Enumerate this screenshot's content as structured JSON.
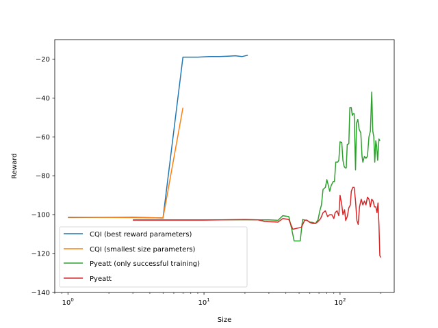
{
  "chart_data": {
    "type": "line",
    "title": "",
    "xlabel": "Size",
    "ylabel": "Reward",
    "xscale": "log",
    "xlim": [
      0.8,
      250
    ],
    "ylim": [
      -140,
      -10
    ],
    "xticks": [
      {
        "value": 1,
        "base": "10",
        "exp": "0"
      },
      {
        "value": 10,
        "base": "10",
        "exp": "1"
      },
      {
        "value": 100,
        "base": "10",
        "exp": "2"
      }
    ],
    "yticks": [
      -20,
      -40,
      -60,
      -80,
      -100,
      -120,
      -140
    ],
    "ytick_labels": [
      "−20",
      "−40",
      "−60",
      "−80",
      "−100",
      "−120",
      "−140"
    ],
    "grid": false,
    "legend_position": "lower left",
    "series": [
      {
        "name": "CQI (best reward parameters)",
        "color": "#1f77b4",
        "points": [
          [
            1,
            -101.5
          ],
          [
            3,
            -101.3
          ],
          [
            5,
            -101.7
          ],
          [
            7,
            -19
          ],
          [
            9,
            -19
          ],
          [
            11,
            -18.7
          ],
          [
            13,
            -18.7
          ],
          [
            15,
            -18.5
          ],
          [
            17,
            -18.3
          ],
          [
            19,
            -18.7
          ],
          [
            21,
            -18
          ]
        ]
      },
      {
        "name": "CQI (smallest size parameters)",
        "color": "#ff7f0e",
        "points": [
          [
            1,
            -101.3
          ],
          [
            3,
            -101.5
          ],
          [
            5,
            -101.7
          ],
          [
            7,
            -45
          ]
        ]
      },
      {
        "name": "Pyeatt (only successful training)",
        "color": "#2ca02c",
        "points": [
          [
            3,
            -102.7
          ],
          [
            5,
            -102.7
          ],
          [
            10,
            -102.7
          ],
          [
            20,
            -102.6
          ],
          [
            30,
            -102.7
          ],
          [
            35,
            -102.9
          ],
          [
            38,
            -100.5
          ],
          [
            42,
            -101
          ],
          [
            44,
            -107
          ],
          [
            46,
            -113.5
          ],
          [
            51,
            -113.5
          ],
          [
            53,
            -102.5
          ],
          [
            57,
            -103
          ],
          [
            60,
            -103.8
          ],
          [
            63,
            -104
          ],
          [
            66,
            -104.5
          ],
          [
            69,
            -102.5
          ],
          [
            71,
            -98
          ],
          [
            73,
            -95
          ],
          [
            75,
            -87
          ],
          [
            78,
            -86
          ],
          [
            80,
            -82
          ],
          [
            82,
            -85
          ],
          [
            84,
            -88
          ],
          [
            86,
            -85
          ],
          [
            89,
            -83
          ],
          [
            91,
            -83
          ],
          [
            93,
            -73
          ],
          [
            96,
            -73
          ],
          [
            98,
            -72
          ],
          [
            100,
            -62.5
          ],
          [
            103,
            -63
          ],
          [
            105,
            -72
          ],
          [
            107,
            -75
          ],
          [
            109,
            -76
          ],
          [
            111,
            -76
          ],
          [
            113,
            -64
          ],
          [
            116,
            -63.5
          ],
          [
            118,
            -45
          ],
          [
            121,
            -45
          ],
          [
            123,
            -49
          ],
          [
            125,
            -48
          ],
          [
            127,
            -48
          ],
          [
            130,
            -77
          ],
          [
            132,
            -53
          ],
          [
            135,
            -51
          ],
          [
            138,
            -56
          ],
          [
            142,
            -58
          ],
          [
            145,
            -70
          ],
          [
            147,
            -73
          ],
          [
            151,
            -70
          ],
          [
            155,
            -71
          ],
          [
            159,
            -70
          ],
          [
            163,
            -60
          ],
          [
            167,
            -57
          ],
          [
            171,
            -37
          ],
          [
            174,
            -57
          ],
          [
            177,
            -60
          ],
          [
            180,
            -73
          ],
          [
            183,
            -62
          ],
          [
            186,
            -65
          ],
          [
            189,
            -72
          ],
          [
            193,
            -61
          ],
          [
            196,
            -62
          ]
        ]
      },
      {
        "name": "Pyeatt",
        "color": "#d62728",
        "points": [
          [
            3,
            -102.8
          ],
          [
            5,
            -102.8
          ],
          [
            10,
            -102.8
          ],
          [
            20,
            -102.5
          ],
          [
            25,
            -102.7
          ],
          [
            28,
            -103.5
          ],
          [
            33,
            -103.7
          ],
          [
            35,
            -103.8
          ],
          [
            38,
            -102
          ],
          [
            42,
            -102.5
          ],
          [
            45,
            -107.5
          ],
          [
            48,
            -107
          ],
          [
            52,
            -106.5
          ],
          [
            55,
            -102.8
          ],
          [
            57,
            -102.8
          ],
          [
            60,
            -104
          ],
          [
            63,
            -104.5
          ],
          [
            66,
            -104.5
          ],
          [
            69,
            -103.5
          ],
          [
            72,
            -102
          ],
          [
            75,
            -99
          ],
          [
            78,
            -98
          ],
          [
            81,
            -101
          ],
          [
            84,
            -100
          ],
          [
            87,
            -100
          ],
          [
            90,
            -102
          ],
          [
            92,
            -99
          ],
          [
            95,
            -98
          ],
          [
            98,
            -100.5
          ],
          [
            100,
            -90
          ],
          [
            103,
            -95
          ],
          [
            105,
            -100
          ],
          [
            108,
            -97.5
          ],
          [
            110,
            -103
          ],
          [
            113,
            -101
          ],
          [
            116,
            -96.5
          ],
          [
            119,
            -95
          ],
          [
            121,
            -88
          ],
          [
            124,
            -86
          ],
          [
            127,
            -86
          ],
          [
            130,
            -93
          ],
          [
            133,
            -103
          ],
          [
            136,
            -105
          ],
          [
            139,
            -96
          ],
          [
            143,
            -92
          ],
          [
            147,
            -95
          ],
          [
            151,
            -93
          ],
          [
            155,
            -95
          ],
          [
            159,
            -91
          ],
          [
            163,
            -92
          ],
          [
            167,
            -96
          ],
          [
            171,
            -92
          ],
          [
            175,
            -93
          ],
          [
            179,
            -96
          ],
          [
            183,
            -96
          ],
          [
            187,
            -99
          ],
          [
            190,
            -94
          ],
          [
            193,
            -105
          ],
          [
            196,
            -121
          ],
          [
            199,
            -122
          ]
        ]
      }
    ]
  }
}
